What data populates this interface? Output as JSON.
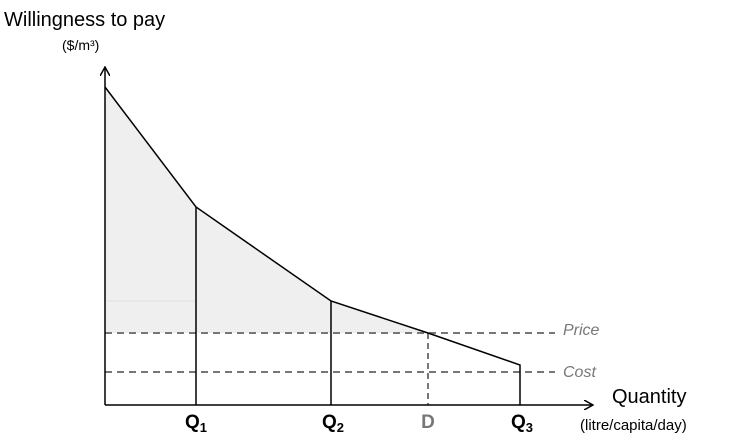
{
  "y_axis": {
    "title": "Willingness to pay",
    "unit": "($/m³)"
  },
  "x_axis": {
    "title": "Quantity",
    "unit": "(litre/capita/day)"
  },
  "x_labels": [
    {
      "main": "Q",
      "sub": "1"
    },
    {
      "main": "Q",
      "sub": "2"
    },
    {
      "main": "D"
    },
    {
      "main": "Q",
      "sub": "3"
    }
  ],
  "lines": {
    "price": "Price",
    "cost": "Cost"
  }
}
